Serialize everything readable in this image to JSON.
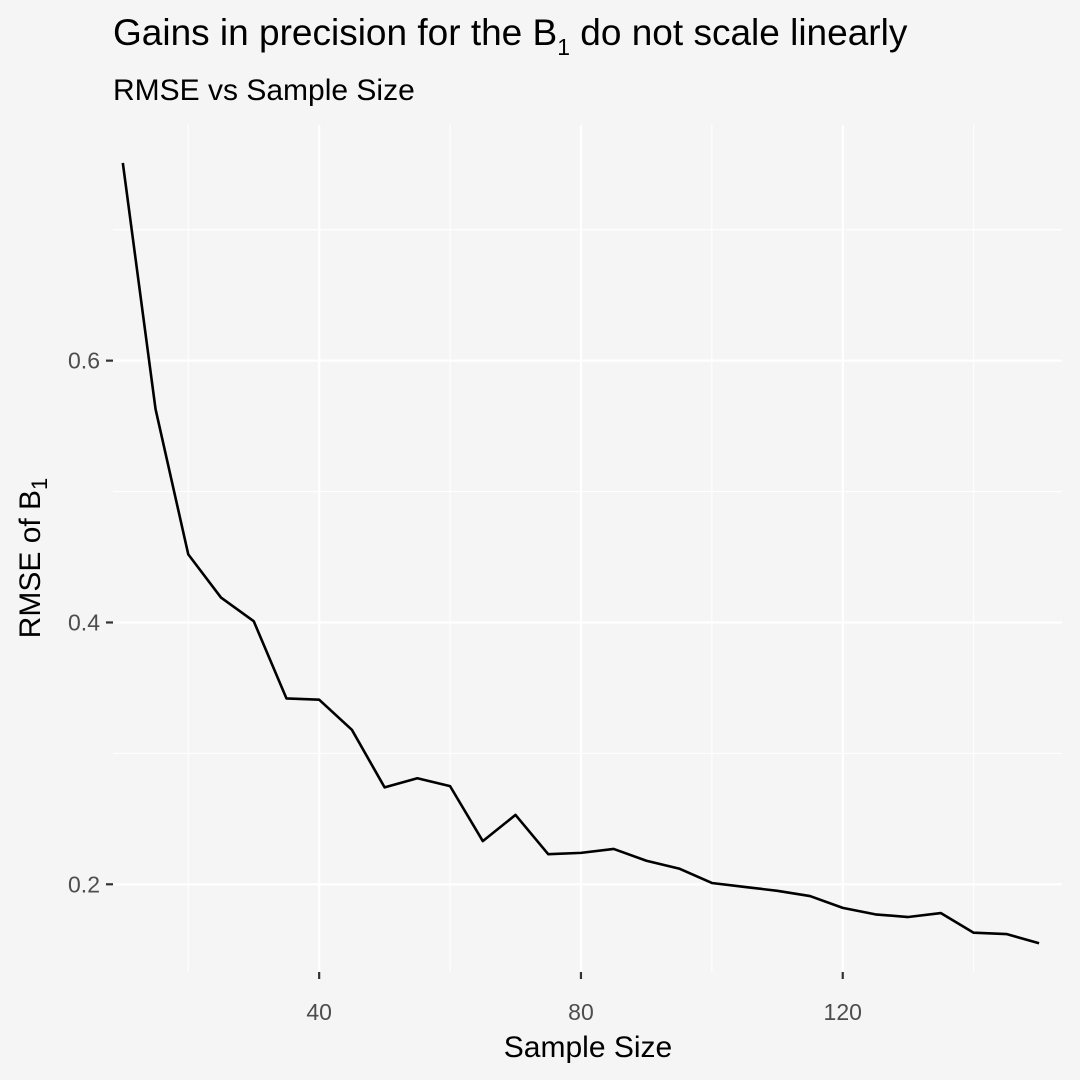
{
  "chart_data": {
    "type": "line",
    "title": {
      "prefix": "Gains in precision for the B",
      "subscript": "1",
      "suffix": " do not scale linearly"
    },
    "subtitle": "RMSE vs Sample Size",
    "xlabel": "Sample Size",
    "ylabel": {
      "prefix": "RMSE of B",
      "subscript": "1"
    },
    "xlim": [
      8.5,
      153.5
    ],
    "ylim": [
      0.133,
      0.78
    ],
    "x_major_ticks": [
      40,
      80,
      120
    ],
    "x_tick_labels": [
      "40",
      "80",
      "120"
    ],
    "x_minor_gridlines": [
      20,
      60,
      100,
      140
    ],
    "y_major_ticks": [
      0.2,
      0.4,
      0.6
    ],
    "y_tick_labels": [
      "0.2",
      "0.4",
      "0.6"
    ],
    "y_minor_gridlines": [
      0.3,
      0.5,
      0.7
    ],
    "grid": true,
    "legend": "none",
    "colors": {
      "background": "#f5f5f5",
      "gridline": "#ffffff",
      "line": "#000000",
      "tick_text": "#4d4d4d",
      "tick_mark": "#333333"
    },
    "series": [
      {
        "x": [
          10,
          15,
          20,
          25,
          30,
          35,
          40,
          45,
          50,
          55,
          60,
          65,
          70,
          75,
          80,
          85,
          90,
          95,
          100,
          105,
          110,
          115,
          120,
          125,
          130,
          135,
          140,
          145,
          150
        ],
        "y": [
          0.751,
          0.563,
          0.452,
          0.419,
          0.401,
          0.342,
          0.341,
          0.318,
          0.274,
          0.281,
          0.275,
          0.233,
          0.253,
          0.223,
          0.224,
          0.227,
          0.218,
          0.212,
          0.201,
          0.198,
          0.195,
          0.191,
          0.182,
          0.177,
          0.175,
          0.178,
          0.163,
          0.162,
          0.155
        ]
      }
    ]
  }
}
